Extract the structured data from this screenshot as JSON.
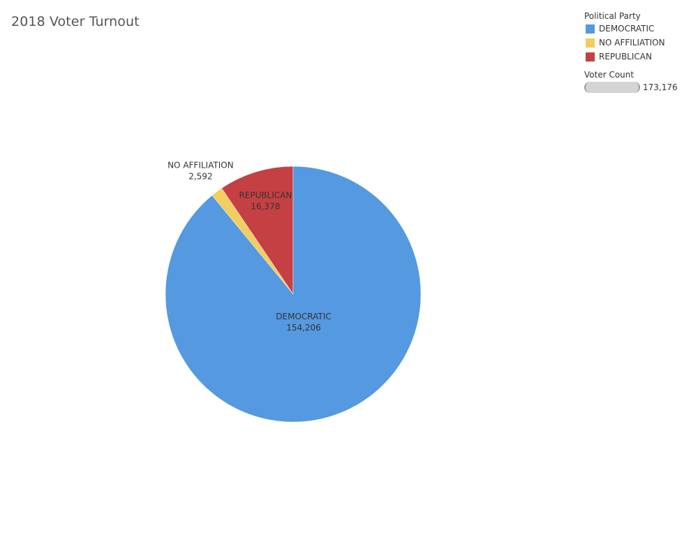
{
  "title": "2018 Voter Turnout",
  "legend": {
    "title": "Political Party",
    "items": [
      {
        "label": "DEMOCRATIC",
        "color": "#5599e0"
      },
      {
        "label": "NO AFFILIATION",
        "color": "#f2cd60"
      },
      {
        "label": "REPUBLICAN",
        "color": "#c54043"
      }
    ]
  },
  "size_legend": {
    "title": "Voter Count",
    "value_label": "173,176"
  },
  "chart_data": {
    "type": "pie",
    "title": "2018 Voter Turnout",
    "categories": [
      "REPUBLICAN",
      "NO AFFILIATION",
      "DEMOCRATIC"
    ],
    "values": [
      16378,
      2592,
      154206
    ],
    "value_labels": [
      "16,378",
      "2,592",
      "154,206"
    ],
    "colors": [
      "#c54043",
      "#f2cd60",
      "#5599e0"
    ],
    "total": 173176,
    "direction": "counterclockwise",
    "start": "top",
    "legend_position": "top-right"
  }
}
